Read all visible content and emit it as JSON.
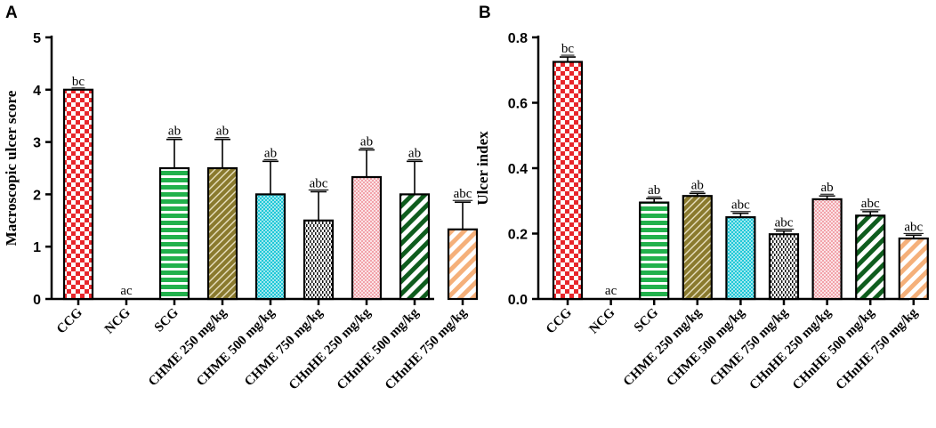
{
  "chart_data": [
    {
      "type": "bar",
      "panel": "A",
      "title": "",
      "xlabel": "",
      "ylabel": "Macroscopic ulcer score",
      "ylim": [
        0,
        5
      ],
      "yticks": [
        "0",
        "1",
        "2",
        "3",
        "4",
        "5"
      ],
      "ytick_values": [
        0,
        1,
        2,
        3,
        4,
        5
      ],
      "categories": [
        "CCG",
        "NCG",
        "SCG",
        "CHME 250 mg/kg",
        "CHME 500 mg/kg",
        "CHME 750 mg/kg",
        "CHnHE 250 mg/kg",
        "CHnHE 500 mg/kg",
        "CHnHE 750 mg/kg"
      ],
      "values": [
        4.0,
        0.0,
        2.5,
        2.5,
        2.0,
        1.5,
        2.33,
        2.0,
        1.33
      ],
      "errors": [
        0.0,
        0.0,
        0.55,
        0.55,
        0.63,
        0.55,
        0.52,
        0.63,
        0.52
      ],
      "labels": [
        "bc",
        "ac",
        "ab",
        "ab",
        "ab",
        "abc",
        "ab",
        "ab",
        "abc"
      ]
    },
    {
      "type": "bar",
      "panel": "B",
      "title": "",
      "xlabel": "",
      "ylabel": "Ulcer index",
      "ylim": [
        0,
        0.8
      ],
      "yticks": [
        "0.0",
        "0.2",
        "0.4",
        "0.6",
        "0.8"
      ],
      "ytick_values": [
        0,
        0.2,
        0.4,
        0.6,
        0.8
      ],
      "categories": [
        "CCG",
        "NCG",
        "SCG",
        "CHME 250 mg/kg",
        "CHME 500 mg/kg",
        "CHME 750 mg/kg",
        "CHnHE 250 mg/kg",
        "CHnHE 500 mg/kg",
        "CHnHE 750 mg/kg"
      ],
      "values": [
        0.725,
        0.0,
        0.295,
        0.315,
        0.25,
        0.198,
        0.305,
        0.255,
        0.185
      ],
      "errors": [
        0.015,
        0.0,
        0.012,
        0.008,
        0.012,
        0.01,
        0.01,
        0.012,
        0.01
      ],
      "labels": [
        "bc",
        "ac",
        "ab",
        "ab",
        "abc",
        "abc",
        "ab",
        "abc",
        "abc"
      ]
    }
  ],
  "series_style": [
    {
      "pattern": "checker",
      "fg": "#e8262b",
      "bg": "#ffffff"
    },
    {
      "pattern": "none",
      "fg": "#ffffff",
      "bg": "#ffffff"
    },
    {
      "pattern": "hstripe",
      "fg": "#22b14c",
      "bg": "#ffffff"
    },
    {
      "pattern": "brick",
      "fg": "#8a7a2e",
      "bg": "#ffffff"
    },
    {
      "pattern": "dots",
      "fg": "#1fc8d8",
      "bg": "#ffffff"
    },
    {
      "pattern": "vdash",
      "fg": "#111111",
      "bg": "#ffffff"
    },
    {
      "pattern": "finegrid",
      "fg": "#f2a3aa",
      "bg": "#ffffff"
    },
    {
      "pattern": "diag",
      "fg": "#0f5d1e",
      "bg": "#ffffff"
    },
    {
      "pattern": "diag",
      "fg": "#f5b07a",
      "bg": "#ffffff"
    }
  ]
}
